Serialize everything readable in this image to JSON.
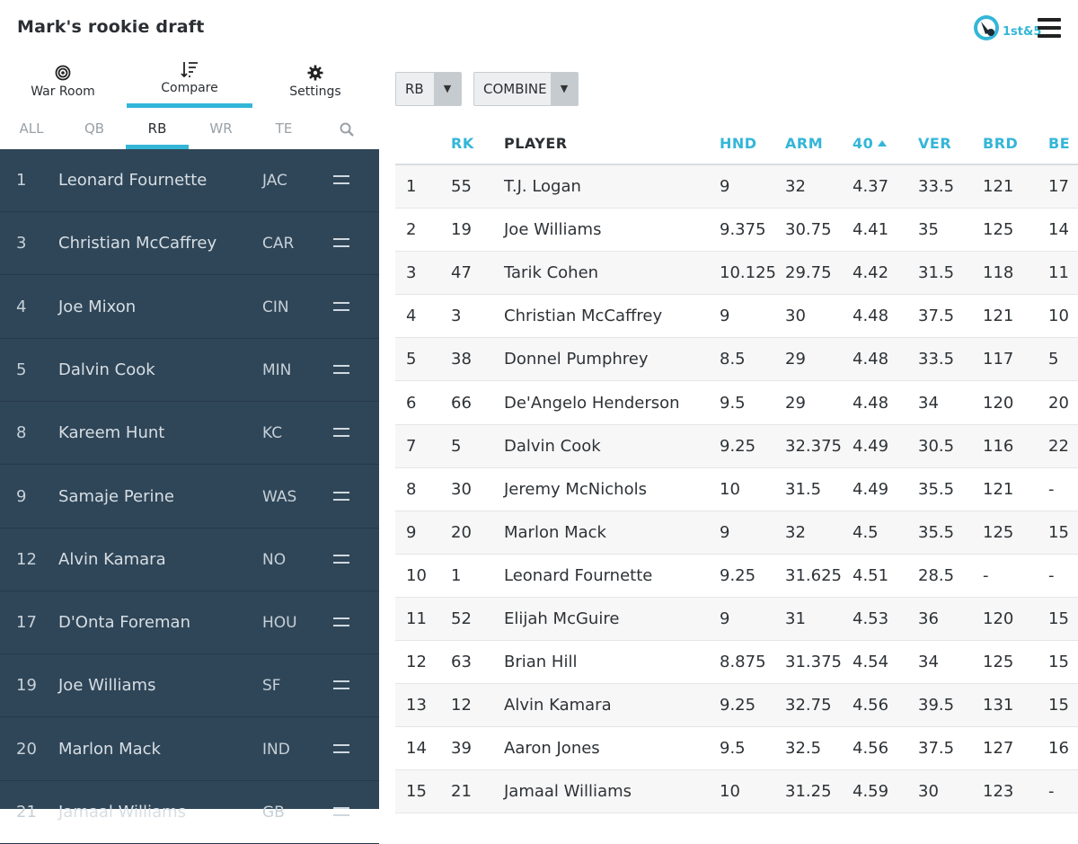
{
  "app": {
    "title": "Mark's rookie draft",
    "brand_text": "1st&5"
  },
  "topnav": [
    {
      "label": "War Room",
      "icon": "target-icon"
    },
    {
      "label": "Compare",
      "icon": "sort-icon"
    },
    {
      "label": "Settings",
      "icon": "gear-icon"
    }
  ],
  "pos_tabs": [
    "ALL",
    "QB",
    "RB",
    "WR",
    "TE"
  ],
  "active_pos_tab": "RB",
  "player_list": [
    {
      "rank": "1",
      "name": "Leonard Fournette",
      "team": "JAC"
    },
    {
      "rank": "3",
      "name": "Christian McCaffrey",
      "team": "CAR"
    },
    {
      "rank": "4",
      "name": "Joe Mixon",
      "team": "CIN"
    },
    {
      "rank": "5",
      "name": "Dalvin Cook",
      "team": "MIN"
    },
    {
      "rank": "8",
      "name": "Kareem Hunt",
      "team": "KC"
    },
    {
      "rank": "9",
      "name": "Samaje Perine",
      "team": "WAS"
    },
    {
      "rank": "12",
      "name": "Alvin Kamara",
      "team": "NO"
    },
    {
      "rank": "17",
      "name": "D'Onta Foreman",
      "team": "HOU"
    },
    {
      "rank": "19",
      "name": "Joe Williams",
      "team": "SF"
    },
    {
      "rank": "20",
      "name": "Marlon Mack",
      "team": "IND"
    },
    {
      "rank": "21",
      "name": "Jamaal Williams",
      "team": "GB"
    }
  ],
  "filters": {
    "position": "RB",
    "metric": "COMBINE"
  },
  "table": {
    "headers": [
      "",
      "RK",
      "PLAYER",
      "HND",
      "ARM",
      "40",
      "VER",
      "BRD",
      "BE"
    ],
    "sorted_column": "40",
    "rows": [
      [
        "1",
        "55",
        "T.J. Logan",
        "9",
        "32",
        "4.37",
        "33.5",
        "121",
        "17"
      ],
      [
        "2",
        "19",
        "Joe Williams",
        "9.375",
        "30.75",
        "4.41",
        "35",
        "125",
        "14"
      ],
      [
        "3",
        "47",
        "Tarik Cohen",
        "10.125",
        "29.75",
        "4.42",
        "31.5",
        "118",
        "11"
      ],
      [
        "4",
        "3",
        "Christian McCaffrey",
        "9",
        "30",
        "4.48",
        "37.5",
        "121",
        "10"
      ],
      [
        "5",
        "38",
        "Donnel Pumphrey",
        "8.5",
        "29",
        "4.48",
        "33.5",
        "117",
        "5"
      ],
      [
        "6",
        "66",
        "De'Angelo Henderson",
        "9.5",
        "29",
        "4.48",
        "34",
        "120",
        "20"
      ],
      [
        "7",
        "5",
        "Dalvin Cook",
        "9.25",
        "32.375",
        "4.49",
        "30.5",
        "116",
        "22"
      ],
      [
        "8",
        "30",
        "Jeremy McNichols",
        "10",
        "31.5",
        "4.49",
        "35.5",
        "121",
        "-"
      ],
      [
        "9",
        "20",
        "Marlon Mack",
        "9",
        "32",
        "4.5",
        "35.5",
        "125",
        "15"
      ],
      [
        "10",
        "1",
        "Leonard Fournette",
        "9.25",
        "31.625",
        "4.51",
        "28.5",
        "-",
        "-"
      ],
      [
        "11",
        "52",
        "Elijah McGuire",
        "9",
        "31",
        "4.53",
        "36",
        "120",
        "15"
      ],
      [
        "12",
        "63",
        "Brian Hill",
        "8.875",
        "31.375",
        "4.54",
        "34",
        "125",
        "15"
      ],
      [
        "13",
        "12",
        "Alvin Kamara",
        "9.25",
        "32.75",
        "4.56",
        "39.5",
        "131",
        "15"
      ],
      [
        "14",
        "39",
        "Aaron Jones",
        "9.5",
        "32.5",
        "4.56",
        "37.5",
        "127",
        "16"
      ],
      [
        "15",
        "21",
        "Jamaal Williams",
        "10",
        "31.25",
        "4.59",
        "30",
        "123",
        "-"
      ]
    ]
  },
  "colors": {
    "accent": "#34b6d8",
    "sidebar_bg": "#2f4658",
    "header_text": "#2b2f33"
  }
}
